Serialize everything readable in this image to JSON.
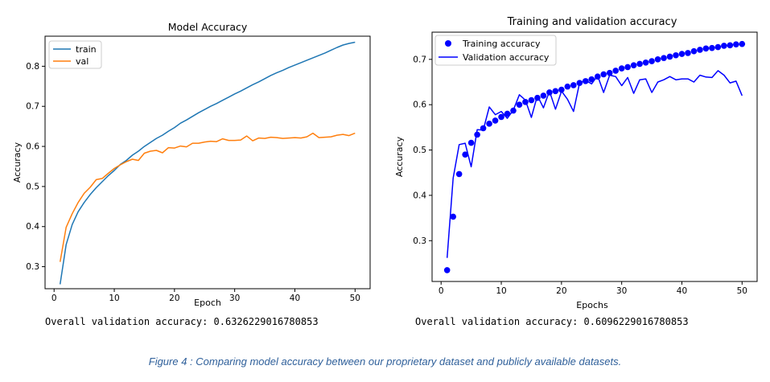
{
  "chart_data": [
    {
      "type": "line",
      "title": "Model Accuracy",
      "xlabel": "Epoch",
      "ylabel": "Accuracy",
      "xlim": [
        -1.5,
        52.5
      ],
      "ylim": [
        0.245,
        0.875
      ],
      "xticks": [
        0,
        10,
        20,
        30,
        40,
        50
      ],
      "yticks": [
        0.3,
        0.4,
        0.5,
        0.6,
        0.7,
        0.8
      ],
      "legend_position": "top-left",
      "grid": false,
      "series": [
        {
          "name": "train",
          "color": "#1f77b4",
          "style": "line",
          "x": [
            1,
            2,
            3,
            4,
            5,
            6,
            7,
            8,
            9,
            10,
            11,
            12,
            13,
            14,
            15,
            16,
            17,
            18,
            19,
            20,
            21,
            22,
            23,
            24,
            25,
            26,
            27,
            28,
            29,
            30,
            31,
            32,
            33,
            34,
            35,
            36,
            37,
            38,
            39,
            40,
            41,
            42,
            43,
            44,
            45,
            46,
            47,
            48,
            49,
            50
          ],
          "y": [
            0.256,
            0.355,
            0.405,
            0.437,
            0.46,
            0.48,
            0.497,
            0.512,
            0.527,
            0.54,
            0.555,
            0.565,
            0.578,
            0.588,
            0.6,
            0.61,
            0.62,
            0.628,
            0.638,
            0.647,
            0.658,
            0.666,
            0.675,
            0.684,
            0.692,
            0.7,
            0.707,
            0.715,
            0.723,
            0.731,
            0.738,
            0.746,
            0.754,
            0.761,
            0.769,
            0.777,
            0.784,
            0.79,
            0.797,
            0.803,
            0.809,
            0.815,
            0.821,
            0.827,
            0.833,
            0.84,
            0.847,
            0.853,
            0.857,
            0.86
          ]
        },
        {
          "name": "val",
          "color": "#ff7f0e",
          "style": "line",
          "x": [
            1,
            2,
            3,
            4,
            5,
            6,
            7,
            8,
            9,
            10,
            11,
            12,
            13,
            14,
            15,
            16,
            17,
            18,
            19,
            20,
            21,
            22,
            23,
            24,
            25,
            26,
            27,
            28,
            29,
            30,
            31,
            32,
            33,
            34,
            35,
            36,
            37,
            38,
            39,
            40,
            41,
            42,
            43,
            44,
            45,
            46,
            47,
            48,
            49,
            50
          ],
          "y": [
            0.312,
            0.398,
            0.432,
            0.46,
            0.483,
            0.498,
            0.517,
            0.52,
            0.533,
            0.545,
            0.554,
            0.562,
            0.568,
            0.565,
            0.583,
            0.588,
            0.59,
            0.584,
            0.597,
            0.596,
            0.601,
            0.599,
            0.608,
            0.608,
            0.611,
            0.613,
            0.612,
            0.619,
            0.615,
            0.615,
            0.616,
            0.626,
            0.614,
            0.621,
            0.62,
            0.623,
            0.622,
            0.62,
            0.621,
            0.622,
            0.621,
            0.624,
            0.633,
            0.622,
            0.623,
            0.624,
            0.628,
            0.63,
            0.627,
            0.633
          ]
        }
      ],
      "summary": "Overall validation accuracy: 0.6326229016780853"
    },
    {
      "type": "line",
      "title": "Training and validation accuracy",
      "xlabel": "Epochs",
      "ylabel": "Accuracy",
      "xlim": [
        -1.5,
        52.5
      ],
      "ylim": [
        0.21,
        0.76
      ],
      "xticks": [
        0,
        10,
        20,
        30,
        40,
        50
      ],
      "yticks": [
        0.3,
        0.4,
        0.5,
        0.6,
        0.7
      ],
      "legend_position": "top-left",
      "grid": false,
      "series": [
        {
          "name": "Training accuracy",
          "color": "#0000ff",
          "style": "dots",
          "x": [
            1,
            2,
            3,
            4,
            5,
            6,
            7,
            8,
            9,
            10,
            11,
            12,
            13,
            14,
            15,
            16,
            17,
            18,
            19,
            20,
            21,
            22,
            23,
            24,
            25,
            26,
            27,
            28,
            29,
            30,
            31,
            32,
            33,
            34,
            35,
            36,
            37,
            38,
            39,
            40,
            41,
            42,
            43,
            44,
            45,
            46,
            47,
            48,
            49,
            50
          ],
          "y": [
            0.235,
            0.353,
            0.447,
            0.49,
            0.516,
            0.534,
            0.548,
            0.558,
            0.565,
            0.573,
            0.58,
            0.587,
            0.6,
            0.606,
            0.61,
            0.615,
            0.62,
            0.627,
            0.63,
            0.633,
            0.64,
            0.643,
            0.648,
            0.652,
            0.656,
            0.662,
            0.667,
            0.67,
            0.675,
            0.68,
            0.683,
            0.687,
            0.69,
            0.693,
            0.696,
            0.7,
            0.703,
            0.706,
            0.709,
            0.712,
            0.714,
            0.718,
            0.721,
            0.724,
            0.725,
            0.727,
            0.73,
            0.731,
            0.733,
            0.734
          ]
        },
        {
          "name": "Validation accuracy",
          "color": "#0000ff",
          "style": "line",
          "x": [
            1,
            2,
            3,
            4,
            5,
            6,
            7,
            8,
            9,
            10,
            11,
            12,
            13,
            14,
            15,
            16,
            17,
            18,
            19,
            20,
            21,
            22,
            23,
            24,
            25,
            26,
            27,
            28,
            29,
            30,
            31,
            32,
            33,
            34,
            35,
            36,
            37,
            38,
            39,
            40,
            41,
            42,
            43,
            44,
            45,
            46,
            47,
            48,
            49,
            50
          ],
          "y": [
            0.262,
            0.438,
            0.512,
            0.515,
            0.463,
            0.545,
            0.544,
            0.595,
            0.578,
            0.585,
            0.57,
            0.588,
            0.622,
            0.61,
            0.572,
            0.62,
            0.593,
            0.63,
            0.59,
            0.63,
            0.612,
            0.585,
            0.648,
            0.654,
            0.646,
            0.664,
            0.627,
            0.665,
            0.662,
            0.642,
            0.66,
            0.625,
            0.655,
            0.657,
            0.627,
            0.65,
            0.655,
            0.662,
            0.655,
            0.657,
            0.657,
            0.65,
            0.665,
            0.661,
            0.66,
            0.675,
            0.665,
            0.648,
            0.652,
            0.62
          ]
        }
      ],
      "summary": "Overall validation accuracy: 0.6096229016780853"
    }
  ],
  "caption": "Figure 4 : Comparing model accuracy between our proprietary dataset and publicly available datasets."
}
